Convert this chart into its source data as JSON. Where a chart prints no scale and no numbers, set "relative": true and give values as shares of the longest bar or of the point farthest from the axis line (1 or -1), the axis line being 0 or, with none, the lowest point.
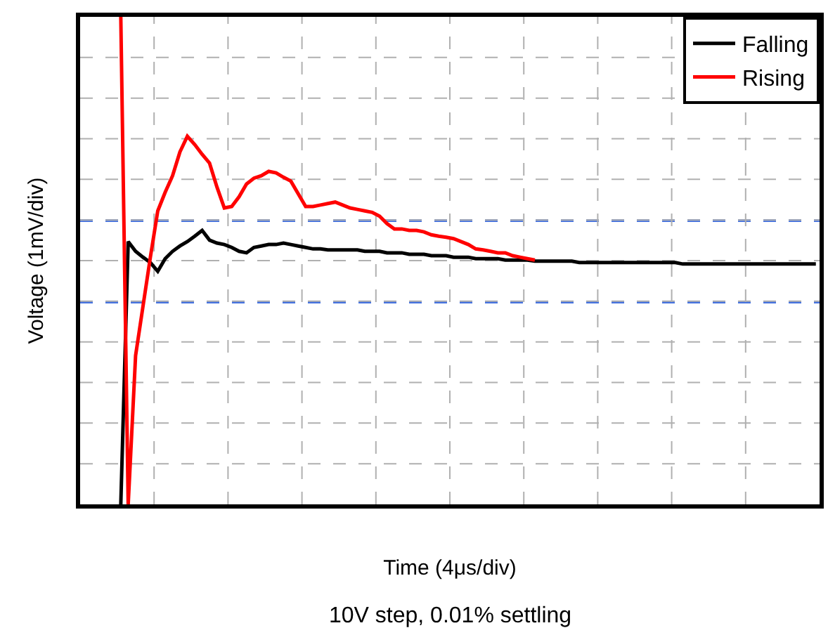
{
  "chart_data": {
    "type": "line",
    "relative": true,
    "xlabel": "Time (4μs/div)",
    "ylabel": "Voltage (1mV/div)",
    "categories": [
      null,
      null,
      null,
      null,
      null,
      null,
      null,
      null,
      null,
      null,
      null,
      null,
      null,
      null,
      null,
      null,
      null,
      null,
      null,
      null,
      null,
      null,
      null,
      null,
      null,
      null,
      null,
      null,
      null,
      null,
      null,
      null,
      null,
      null,
      null,
      null,
      null,
      null,
      null,
      null,
      null,
      null,
      null,
      null,
      null,
      null,
      null,
      null,
      null,
      null,
      null,
      null,
      null,
      null,
      null,
      null,
      null,
      null,
      null,
      null,
      null,
      null,
      null,
      null,
      null,
      null,
      null,
      null,
      null,
      null,
      null,
      null,
      null,
      null,
      null,
      null,
      null,
      null,
      null,
      null,
      null,
      null,
      null,
      null,
      null,
      null,
      null,
      null,
      null,
      null,
      null,
      null,
      null,
      null,
      null,
      null,
      null,
      null,
      null,
      null
    ],
    "series": [
      {
        "name": "Falling",
        "color": "#000000",
        "values": [
          null,
          null,
          null,
          null,
          null,
          0,
          0.539,
          0.519,
          0.507,
          0.496,
          0.478,
          0.504,
          0.519,
          0.53,
          0.539,
          0.55,
          0.562,
          0.542,
          0.536,
          0.533,
          0.527,
          0.519,
          0.516,
          0.527,
          0.53,
          0.533,
          0.533,
          0.536,
          0.533,
          0.53,
          0.527,
          0.524,
          0.524,
          0.522,
          0.522,
          0.522,
          0.522,
          0.522,
          0.519,
          0.519,
          0.519,
          0.516,
          0.516,
          0.516,
          0.513,
          0.513,
          0.513,
          0.51,
          0.51,
          0.51,
          0.507,
          0.507,
          0.507,
          0.504,
          0.504,
          0.504,
          0.504,
          0.501,
          0.501,
          0.501,
          0.501,
          0.499,
          0.499,
          0.499,
          0.499,
          0.499,
          0.499,
          0.496,
          0.496,
          0.496,
          0.496,
          0.496,
          0.496,
          0.496,
          0.496,
          0.496,
          0.496,
          0.496,
          0.496,
          0.496,
          0.496,
          0.493,
          0.493,
          0.493,
          0.493,
          0.493,
          0.493,
          0.493,
          0.493,
          0.493,
          0.493,
          0.493,
          0.493,
          0.493,
          0.493,
          0.493,
          0.493,
          0.493,
          0.493,
          0.493
        ]
      },
      {
        "name": "Rising",
        "color": "#ff0000",
        "values": [
          null,
          null,
          null,
          null,
          null,
          1,
          0,
          0.305,
          0.406,
          0.507,
          0.602,
          0.64,
          0.674,
          0.723,
          0.755,
          0.738,
          0.718,
          0.7,
          0.651,
          0.608,
          0.611,
          0.631,
          0.657,
          0.669,
          0.674,
          0.683,
          0.68,
          0.671,
          0.663,
          0.637,
          0.611,
          0.611,
          0.614,
          0.617,
          0.62,
          0.614,
          0.608,
          0.605,
          0.602,
          0.599,
          0.591,
          0.576,
          0.565,
          0.565,
          0.562,
          0.562,
          0.559,
          0.553,
          0.55,
          0.548,
          0.545,
          0.539,
          0.533,
          0.524,
          0.522,
          0.519,
          0.516,
          0.516,
          0.51,
          0.507,
          0.504,
          0.501,
          null,
          null,
          null,
          null,
          null,
          null,
          null,
          null,
          null,
          null,
          null,
          null,
          null,
          null,
          null,
          null,
          null,
          null,
          null,
          null,
          null,
          null,
          null,
          null,
          null,
          null,
          null,
          null,
          null,
          null,
          null,
          null,
          null,
          null,
          null,
          null,
          null,
          null
        ]
      }
    ],
    "ref_lines": [
      {
        "axis": "y",
        "value": 0.582,
        "color": "#4472e0",
        "line_style": "dashed"
      },
      {
        "axis": "y",
        "value": 0.415,
        "color": "#4472e0",
        "line_style": "dashed"
      }
    ],
    "annotations": [
      "10V step, 0.01% settling"
    ],
    "grid": true,
    "legend": "top right",
    "marker": "none",
    "line_style": "solid"
  }
}
